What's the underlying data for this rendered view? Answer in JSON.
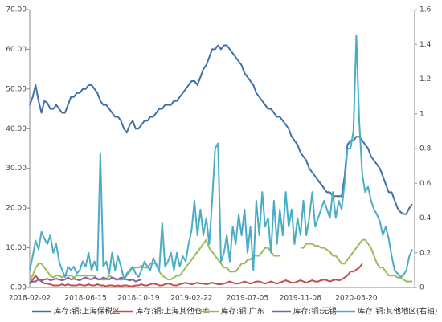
{
  "chart_data": {
    "type": "line",
    "categories": [
      "2018-02-02",
      null,
      null,
      null,
      null,
      null,
      null,
      null,
      null,
      null,
      null,
      null,
      null,
      null,
      null,
      null,
      null,
      null,
      null,
      "2018-06-15",
      null,
      null,
      null,
      null,
      null,
      null,
      null,
      null,
      null,
      null,
      null,
      null,
      null,
      null,
      null,
      null,
      null,
      "2018-10-19",
      null,
      null,
      null,
      null,
      null,
      null,
      null,
      null,
      null,
      null,
      null,
      null,
      null,
      null,
      null,
      null,
      null,
      "2019-02-22",
      null,
      null,
      null,
      null,
      null,
      null,
      null,
      null,
      null,
      null,
      null,
      null,
      null,
      null,
      null,
      null,
      null,
      null,
      "2019-07-05",
      null,
      null,
      null,
      null,
      null,
      null,
      null,
      null,
      null,
      null,
      null,
      null,
      null,
      null,
      null,
      null,
      null,
      "2019-11-08",
      null,
      null,
      null,
      null,
      null,
      null,
      null,
      null,
      null,
      null,
      null,
      null,
      null,
      null,
      null,
      null,
      null,
      null,
      "2020-03-20",
      null,
      null,
      null,
      null,
      null,
      null,
      null,
      null,
      null,
      null,
      null,
      null,
      null,
      null,
      null,
      null,
      null,
      null,
      null
    ],
    "ylim": [
      0,
      70
    ],
    "yticks": [
      {
        "value": 0,
        "label": "0.00"
      },
      {
        "value": 10,
        "label": "10.00"
      },
      {
        "value": 20,
        "label": "20.00"
      },
      {
        "value": 30,
        "label": "30.00"
      },
      {
        "value": 40,
        "label": "40.00"
      },
      {
        "value": 50,
        "label": "50.00"
      },
      {
        "value": 60,
        "label": "60.00"
      },
      {
        "value": 70,
        "label": "70.00"
      }
    ],
    "y2lim": [
      0,
      1.6
    ],
    "y2ticks": [
      0,
      0.2,
      0.4,
      0.6,
      0.8,
      1,
      1.2,
      1.4,
      1.6
    ],
    "series": [
      {
        "name": "库存:铜:上海保税区",
        "color": "#3f72a8",
        "values": [
          46,
          48,
          51,
          47,
          44,
          47,
          46.5,
          45,
          45,
          46,
          45,
          44,
          44,
          46,
          48,
          48,
          49,
          49,
          50,
          50,
          51,
          51,
          50,
          49,
          47,
          46,
          46,
          45,
          44,
          43,
          43,
          42,
          40,
          39,
          41,
          42,
          40,
          40,
          41,
          42,
          42,
          43,
          43,
          44,
          45,
          45,
          46,
          46,
          46,
          47,
          47,
          48,
          49,
          50,
          51,
          52,
          52,
          51,
          53,
          55,
          56,
          58,
          60,
          60,
          61,
          60,
          61,
          61,
          60,
          59,
          58,
          57,
          56,
          54,
          53,
          52,
          51,
          49,
          48,
          47,
          46,
          45,
          45,
          44,
          43,
          43,
          42,
          41,
          40,
          38,
          37,
          36,
          34,
          33,
          32,
          30,
          29,
          28,
          27,
          26,
          25,
          24,
          24,
          23,
          23,
          23,
          23,
          28,
          36,
          37,
          37,
          38,
          38,
          37,
          36,
          35,
          33,
          32,
          31,
          30,
          28,
          26,
          24,
          24,
          22,
          20,
          19,
          18.5,
          18.5,
          20,
          21
        ]
      },
      {
        "name": "库存:铜:上海其他仓库",
        "color": "#c0504d",
        "values": [
          1,
          2,
          3,
          2,
          1.5,
          1,
          1,
          0.8,
          0.5,
          0.5,
          0.5,
          0.8,
          0.5,
          0.8,
          0.5,
          0.5,
          0.5,
          0.8,
          0.5,
          0.5,
          0.8,
          0.5,
          0.5,
          0.8,
          0.5,
          0.5,
          0.3,
          0.5,
          0.5,
          0.3,
          0.5,
          0.3,
          0.5,
          0.5,
          0.3,
          0.3,
          0.5,
          0.5,
          0.8,
          0.5,
          0.5,
          0.8,
          1,
          0.8,
          0.5,
          0.5,
          0.8,
          1,
          0.8,
          0.5,
          0.5,
          0.8,
          1,
          1.2,
          1,
          0.8,
          1,
          1.2,
          1,
          1,
          0.8,
          1,
          1.2,
          1,
          0.8,
          0.8,
          1,
          1.2,
          1.5,
          1.2,
          1,
          1,
          1.2,
          1.5,
          1.2,
          1,
          1.2,
          1.5,
          1.5,
          1.2,
          1,
          1.2,
          1.5,
          1.2,
          1,
          1.2,
          1.5,
          1.8,
          1.5,
          1.2,
          1.2,
          1.5,
          1.8,
          1.5,
          1.2,
          1.5,
          1.8,
          1.5,
          1.5,
          1.8,
          2,
          1.8,
          1.5,
          1.8,
          2,
          1.8,
          2,
          2.5,
          3,
          4,
          4,
          4.5,
          5,
          6,
          null,
          null,
          null,
          null,
          null,
          null,
          null,
          null,
          null,
          null,
          null,
          null,
          null,
          null,
          null,
          null,
          null
        ]
      },
      {
        "name": "库存:铜:广东",
        "color": "#9bbb59",
        "values": [
          2,
          3,
          5,
          6,
          6,
          5,
          4,
          3,
          2.5,
          3,
          3,
          2.5,
          3,
          3,
          3,
          2.5,
          3,
          3,
          3,
          3,
          3,
          3,
          3,
          2,
          2,
          2,
          2,
          3,
          2.5,
          2,
          2,
          2,
          2,
          3,
          4,
          5,
          5,
          5,
          5.5,
          5,
          5,
          6,
          6,
          6,
          4,
          3,
          2.5,
          2,
          2,
          2.5,
          3,
          3,
          4,
          5,
          6,
          7,
          8,
          9,
          10,
          11,
          12,
          10,
          9,
          8,
          7,
          6,
          5,
          5,
          4,
          4,
          4,
          5,
          6,
          6,
          7,
          7,
          8,
          8,
          8,
          9,
          10,
          10,
          9,
          8,
          8,
          8,
          null,
          null,
          null,
          null,
          null,
          null,
          10,
          10,
          11,
          11,
          11,
          10.5,
          10.5,
          10,
          10,
          9.5,
          9,
          8,
          8,
          7,
          6,
          6,
          7,
          8,
          9,
          10,
          11,
          12,
          12,
          11,
          10,
          8,
          6,
          5,
          5,
          4,
          3,
          3,
          3,
          2.5,
          2.5,
          2,
          1.5,
          1.5,
          1.5
        ]
      },
      {
        "name": "库存:铜:无锡",
        "color": "#8064a2",
        "values": [
          1,
          1.5,
          1.5,
          2,
          1.8,
          2,
          2.2,
          1.8,
          2,
          2.2,
          2,
          1.8,
          2,
          2.5,
          2,
          2.2,
          2,
          1.8,
          2.2,
          2.5,
          2.2,
          2,
          2.5,
          2.2,
          2,
          2.5,
          2.2,
          2,
          2.5,
          2.2,
          2,
          2.5,
          2.2,
          2,
          1.8,
          2,
          1.5,
          1.8,
          2,
          null,
          null,
          null,
          null,
          null,
          null,
          null,
          null,
          null,
          null,
          null,
          null,
          null,
          null,
          null,
          null,
          null,
          null,
          null,
          null,
          null,
          null,
          null,
          null,
          null,
          null,
          null,
          null,
          null,
          null,
          null,
          null,
          null,
          null,
          null,
          null,
          null,
          null,
          null,
          null,
          null,
          null,
          null,
          null,
          null,
          null,
          null,
          null,
          null,
          null,
          null,
          null,
          null,
          null,
          null,
          null,
          null,
          null,
          null,
          null,
          null,
          null,
          null,
          null,
          null,
          null,
          null,
          null,
          null,
          null,
          null,
          null,
          null,
          null,
          null,
          null,
          null,
          null,
          null,
          null,
          null,
          null,
          null,
          null,
          null,
          null,
          null,
          null,
          null,
          null,
          null,
          null
        ]
      },
      {
        "name": "库存:铜:其他地区(右轴)",
        "color": "#4bacc6",
        "axis": "y2",
        "values": [
          0.1,
          0.18,
          0.27,
          0.22,
          0.32,
          0.28,
          0.25,
          0.3,
          0.2,
          0.25,
          0.15,
          0.1,
          0.06,
          0.12,
          0.1,
          0.12,
          0.08,
          0.1,
          0.15,
          0.12,
          0.2,
          0.1,
          0.15,
          0.1,
          0.77,
          0.12,
          0.15,
          0.08,
          0.2,
          0.1,
          0.18,
          0.12,
          0.05,
          0.08,
          0.1,
          0.12,
          0.08,
          0.06,
          0.1,
          0.15,
          0.12,
          0.1,
          0.17,
          0.13,
          0.1,
          0.37,
          0.12,
          0.15,
          0.2,
          0.1,
          0.2,
          0.12,
          0.18,
          0.15,
          0.25,
          0.33,
          0.5,
          0.3,
          0.45,
          0.3,
          0.4,
          0.25,
          0.5,
          0.8,
          0.83,
          0.15,
          0.2,
          0.3,
          0.15,
          0.35,
          0.25,
          0.42,
          0.3,
          0.45,
          0.2,
          0.35,
          0.1,
          0.5,
          0.3,
          0.55,
          0.35,
          0.4,
          0.2,
          0.5,
          0.25,
          0.45,
          0.3,
          0.55,
          0.35,
          0.45,
          0.25,
          0.4,
          0.3,
          0.5,
          0.3,
          0.4,
          0.55,
          0.35,
          0.4,
          0.45,
          0.5,
          0.45,
          0.4,
          0.55,
          0.4,
          0.5,
          0.45,
          0.6,
          0.8,
          0.8,
          0.9,
          1.45,
          0.95,
          0.65,
          0.55,
          0.58,
          0.5,
          0.45,
          0.42,
          0.38,
          0.3,
          0.35,
          0.28,
          0.18,
          0.1,
          0.08,
          0.06,
          0.07,
          0.1,
          0.18,
          0.22
        ]
      }
    ],
    "legend": "bottom"
  }
}
